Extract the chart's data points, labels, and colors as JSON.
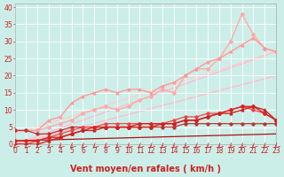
{
  "bg_color": "#cceee8",
  "grid_color": "#ffffff",
  "xlabel": "Vent moyen/en rafales ( km/h )",
  "xlim": [
    0,
    23
  ],
  "ylim": [
    0,
    41
  ],
  "xticks": [
    0,
    1,
    2,
    3,
    4,
    5,
    6,
    7,
    8,
    9,
    10,
    11,
    12,
    13,
    14,
    15,
    16,
    17,
    18,
    19,
    20,
    21,
    22,
    23
  ],
  "yticks": [
    0,
    5,
    10,
    15,
    20,
    25,
    30,
    35,
    40
  ],
  "lines": [
    {
      "x": [
        0,
        23
      ],
      "y": [
        0,
        27
      ],
      "color": "#ffbbcc",
      "lw": 1.0,
      "marker": null,
      "ms": 0,
      "zorder": 1
    },
    {
      "x": [
        0,
        23
      ],
      "y": [
        0,
        20
      ],
      "color": "#ffbbcc",
      "lw": 1.0,
      "marker": null,
      "ms": 0,
      "zorder": 1
    },
    {
      "x": [
        0,
        1,
        2,
        3,
        4,
        5,
        6,
        7,
        8,
        9,
        10,
        11,
        12,
        13,
        14,
        15,
        16,
        17,
        18,
        19,
        20,
        21,
        22,
        23
      ],
      "y": [
        4,
        4,
        4,
        5,
        6,
        7,
        9,
        10,
        11,
        10,
        11,
        13,
        14,
        16,
        15,
        20,
        22,
        22,
        25,
        30,
        38,
        32,
        28,
        27
      ],
      "color": "#ffaaaa",
      "lw": 1.0,
      "marker": "D",
      "ms": 2.0,
      "zorder": 3
    },
    {
      "x": [
        0,
        1,
        2,
        3,
        4,
        5,
        6,
        7,
        8,
        9,
        10,
        11,
        12,
        13,
        14,
        15,
        16,
        17,
        18,
        19,
        20,
        21,
        22,
        23
      ],
      "y": [
        4,
        4,
        4,
        7,
        8,
        12,
        14,
        15,
        16,
        15,
        16,
        16,
        15,
        17,
        18,
        20,
        22,
        24,
        25,
        27,
        29,
        31,
        28,
        27
      ],
      "color": "#ff9999",
      "lw": 1.0,
      "marker": "^",
      "ms": 2.0,
      "zorder": 3
    },
    {
      "x": [
        0,
        23
      ],
      "y": [
        3,
        27
      ],
      "color": "#ffcccc",
      "lw": 0.8,
      "marker": null,
      "ms": 0,
      "zorder": 1
    },
    {
      "x": [
        0,
        1,
        2,
        3,
        4,
        5,
        6,
        7,
        8,
        9,
        10,
        11,
        12,
        13,
        14,
        15,
        16,
        17,
        18,
        19,
        20,
        21,
        22,
        23
      ],
      "y": [
        1,
        1,
        1,
        2,
        2,
        3,
        4,
        5,
        5,
        5,
        5,
        6,
        6,
        6,
        6,
        7,
        7,
        8,
        9,
        10,
        11,
        11,
        9,
        7
      ],
      "color": "#dd2222",
      "lw": 1.0,
      "marker": "D",
      "ms": 2.0,
      "zorder": 4
    },
    {
      "x": [
        0,
        1,
        2,
        3,
        4,
        5,
        6,
        7,
        8,
        9,
        10,
        11,
        12,
        13,
        14,
        15,
        16,
        17,
        18,
        19,
        20,
        21,
        22,
        23
      ],
      "y": [
        0,
        0,
        0,
        1,
        2,
        3,
        4,
        4,
        5,
        5,
        5,
        5,
        5,
        6,
        6,
        7,
        7,
        8,
        9,
        9,
        10,
        11,
        10,
        7
      ],
      "color": "#cc2222",
      "lw": 1.0,
      "marker": "^",
      "ms": 2.0,
      "zorder": 4
    },
    {
      "x": [
        0,
        23
      ],
      "y": [
        1,
        3
      ],
      "color": "#aa1111",
      "lw": 0.9,
      "marker": null,
      "ms": 0,
      "zorder": 2
    },
    {
      "x": [
        0,
        1,
        2,
        3,
        4,
        5,
        6,
        7,
        8,
        9,
        10,
        11,
        12,
        13,
        14,
        15,
        16,
        17,
        18,
        19,
        20,
        21,
        22,
        23
      ],
      "y": [
        4,
        4,
        3,
        3,
        4,
        5,
        5,
        5,
        5,
        5,
        5,
        5,
        5,
        5,
        5,
        6,
        6,
        6,
        6,
        6,
        6,
        6,
        6,
        6
      ],
      "color": "#bb3333",
      "lw": 0.9,
      "marker": "D",
      "ms": 1.8,
      "zorder": 3
    },
    {
      "x": [
        0,
        1,
        2,
        3,
        4,
        5,
        6,
        7,
        8,
        9,
        10,
        11,
        12,
        13,
        14,
        15,
        16,
        17,
        18,
        19,
        20,
        21,
        22,
        23
      ],
      "y": [
        0,
        0,
        1,
        2,
        3,
        4,
        5,
        5,
        6,
        6,
        6,
        6,
        6,
        6,
        7,
        8,
        8,
        9,
        9,
        10,
        11,
        10,
        9,
        7
      ],
      "color": "#ee4444",
      "lw": 0.9,
      "marker": "D",
      "ms": 1.8,
      "zorder": 3
    }
  ],
  "axis_fontsize": 7,
  "tick_fontsize": 5.5
}
